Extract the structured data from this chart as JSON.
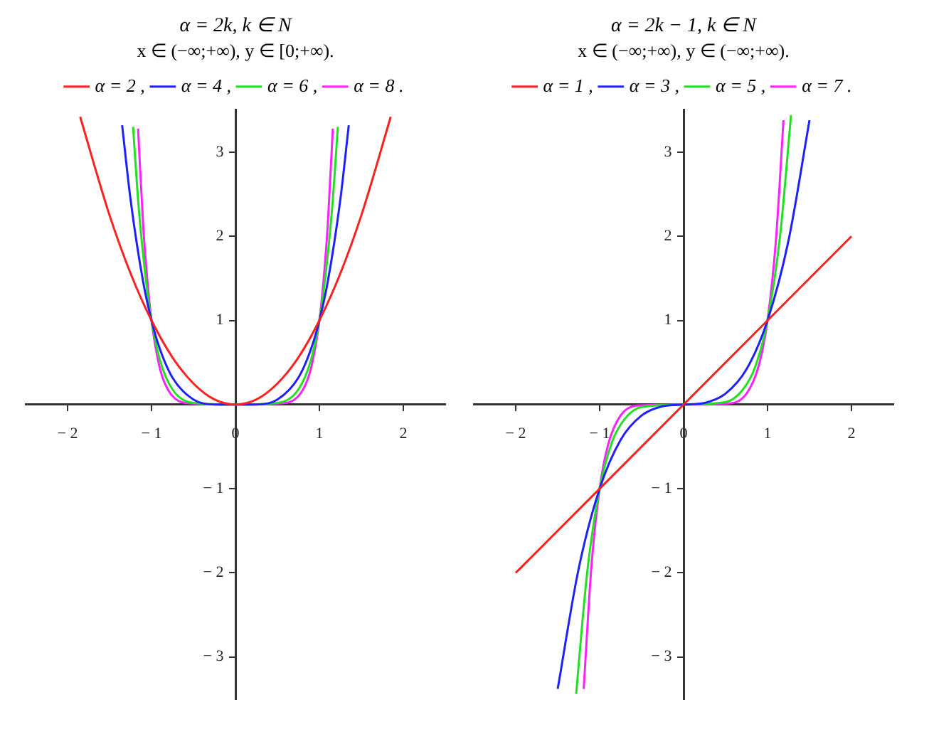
{
  "chart_data": [
    {
      "type": "line",
      "title": "α = 2k, k ∈ N",
      "subtitle": "x ∈ (−∞;+∞), y ∈ [0;+∞).",
      "legend": "top",
      "grid": false,
      "marker": "none",
      "xlim": [
        -2.5,
        2.5
      ],
      "ylim": [
        -3.5,
        3.5
      ],
      "xticks": [
        -2,
        -1,
        0,
        1,
        2
      ],
      "yticks": [
        -3,
        -2,
        -1,
        1,
        2,
        3
      ],
      "series": [
        {
          "name": "α = 2 ,",
          "color": "#ff2020",
          "x": [
            -1.85,
            -1.5,
            -1.25,
            -1,
            -0.75,
            -0.5,
            -0.25,
            0,
            0.25,
            0.5,
            0.75,
            1,
            1.25,
            1.5,
            1.85
          ],
          "values": [
            3.42,
            2.25,
            1.56,
            1,
            0.56,
            0.25,
            0.06,
            0,
            0.06,
            0.25,
            0.56,
            1,
            1.56,
            2.25,
            3.42
          ]
        },
        {
          "name": "α = 4 ,",
          "color": "#2020ff",
          "x": [
            -1.35,
            -1.25,
            -1.1,
            -1,
            -0.9,
            -0.75,
            -0.5,
            -0.25,
            0,
            0.25,
            0.5,
            0.75,
            0.9,
            1,
            1.1,
            1.25,
            1.35
          ],
          "values": [
            3.32,
            2.44,
            1.46,
            1,
            0.66,
            0.32,
            0.06,
            0,
            0,
            0,
            0.06,
            0.32,
            0.66,
            1,
            1.46,
            2.44,
            3.32
          ]
        },
        {
          "name": "α = 6 ,",
          "color": "#20e020",
          "x": [
            -1.22,
            -1.15,
            -1.05,
            -1,
            -0.9,
            -0.75,
            -0.5,
            0,
            0.5,
            0.75,
            0.9,
            1,
            1.05,
            1.15,
            1.22
          ],
          "values": [
            3.3,
            2.31,
            1.34,
            1,
            0.53,
            0.18,
            0.02,
            0,
            0.02,
            0.18,
            0.53,
            1,
            1.34,
            2.31,
            3.3
          ]
        },
        {
          "name": "α = 8 .",
          "color": "#ff20ff",
          "x": [
            -1.16,
            -1.1,
            -1.05,
            -1,
            -0.9,
            -0.8,
            -0.6,
            0,
            0.6,
            0.8,
            0.9,
            1,
            1.05,
            1.1,
            1.16
          ],
          "values": [
            3.28,
            2.14,
            1.48,
            1,
            0.43,
            0.17,
            0.02,
            0,
            0.02,
            0.17,
            0.43,
            1,
            1.48,
            2.14,
            3.28
          ]
        }
      ]
    },
    {
      "type": "line",
      "title": "α = 2k − 1, k ∈ N",
      "subtitle": "x ∈ (−∞;+∞), y ∈ (−∞;+∞).",
      "legend": "top",
      "grid": false,
      "marker": "none",
      "xlim": [
        -2.5,
        2.5
      ],
      "ylim": [
        -3.5,
        3.5
      ],
      "xticks": [
        -2,
        -1,
        0,
        1,
        2
      ],
      "yticks": [
        -3,
        -2,
        -1,
        1,
        2,
        3
      ],
      "series": [
        {
          "name": "α = 1 ,",
          "color": "#ff2020",
          "x": [
            -2,
            0,
            2
          ],
          "values": [
            -2,
            0,
            2
          ]
        },
        {
          "name": "α = 3 ,",
          "color": "#2020ff",
          "x": [
            -1.5,
            -1.25,
            -1,
            -0.75,
            -0.5,
            -0.25,
            0,
            0.25,
            0.5,
            0.75,
            1,
            1.25,
            1.5
          ],
          "values": [
            -3.38,
            -1.95,
            -1,
            -0.42,
            -0.13,
            -0.02,
            0,
            0.02,
            0.13,
            0.42,
            1,
            1.95,
            3.38
          ]
        },
        {
          "name": "α = 5 ,",
          "color": "#20e020",
          "x": [
            -1.28,
            -1.15,
            -1,
            -0.85,
            -0.7,
            -0.5,
            0,
            0.5,
            0.7,
            0.85,
            1,
            1.15,
            1.28
          ],
          "values": [
            -3.44,
            -2.01,
            -1,
            -0.44,
            -0.17,
            -0.03,
            0,
            0.03,
            0.17,
            0.44,
            1,
            2.01,
            3.44
          ]
        },
        {
          "name": "α = 7 .",
          "color": "#ff20ff",
          "x": [
            -1.19,
            -1.1,
            -1,
            -0.9,
            -0.75,
            -0.5,
            0,
            0.5,
            0.75,
            0.9,
            1,
            1.1,
            1.19
          ],
          "values": [
            -3.38,
            -1.95,
            -1,
            -0.48,
            -0.13,
            -0.01,
            0,
            0.01,
            0.13,
            0.48,
            1,
            1.95,
            3.38
          ]
        }
      ]
    }
  ]
}
